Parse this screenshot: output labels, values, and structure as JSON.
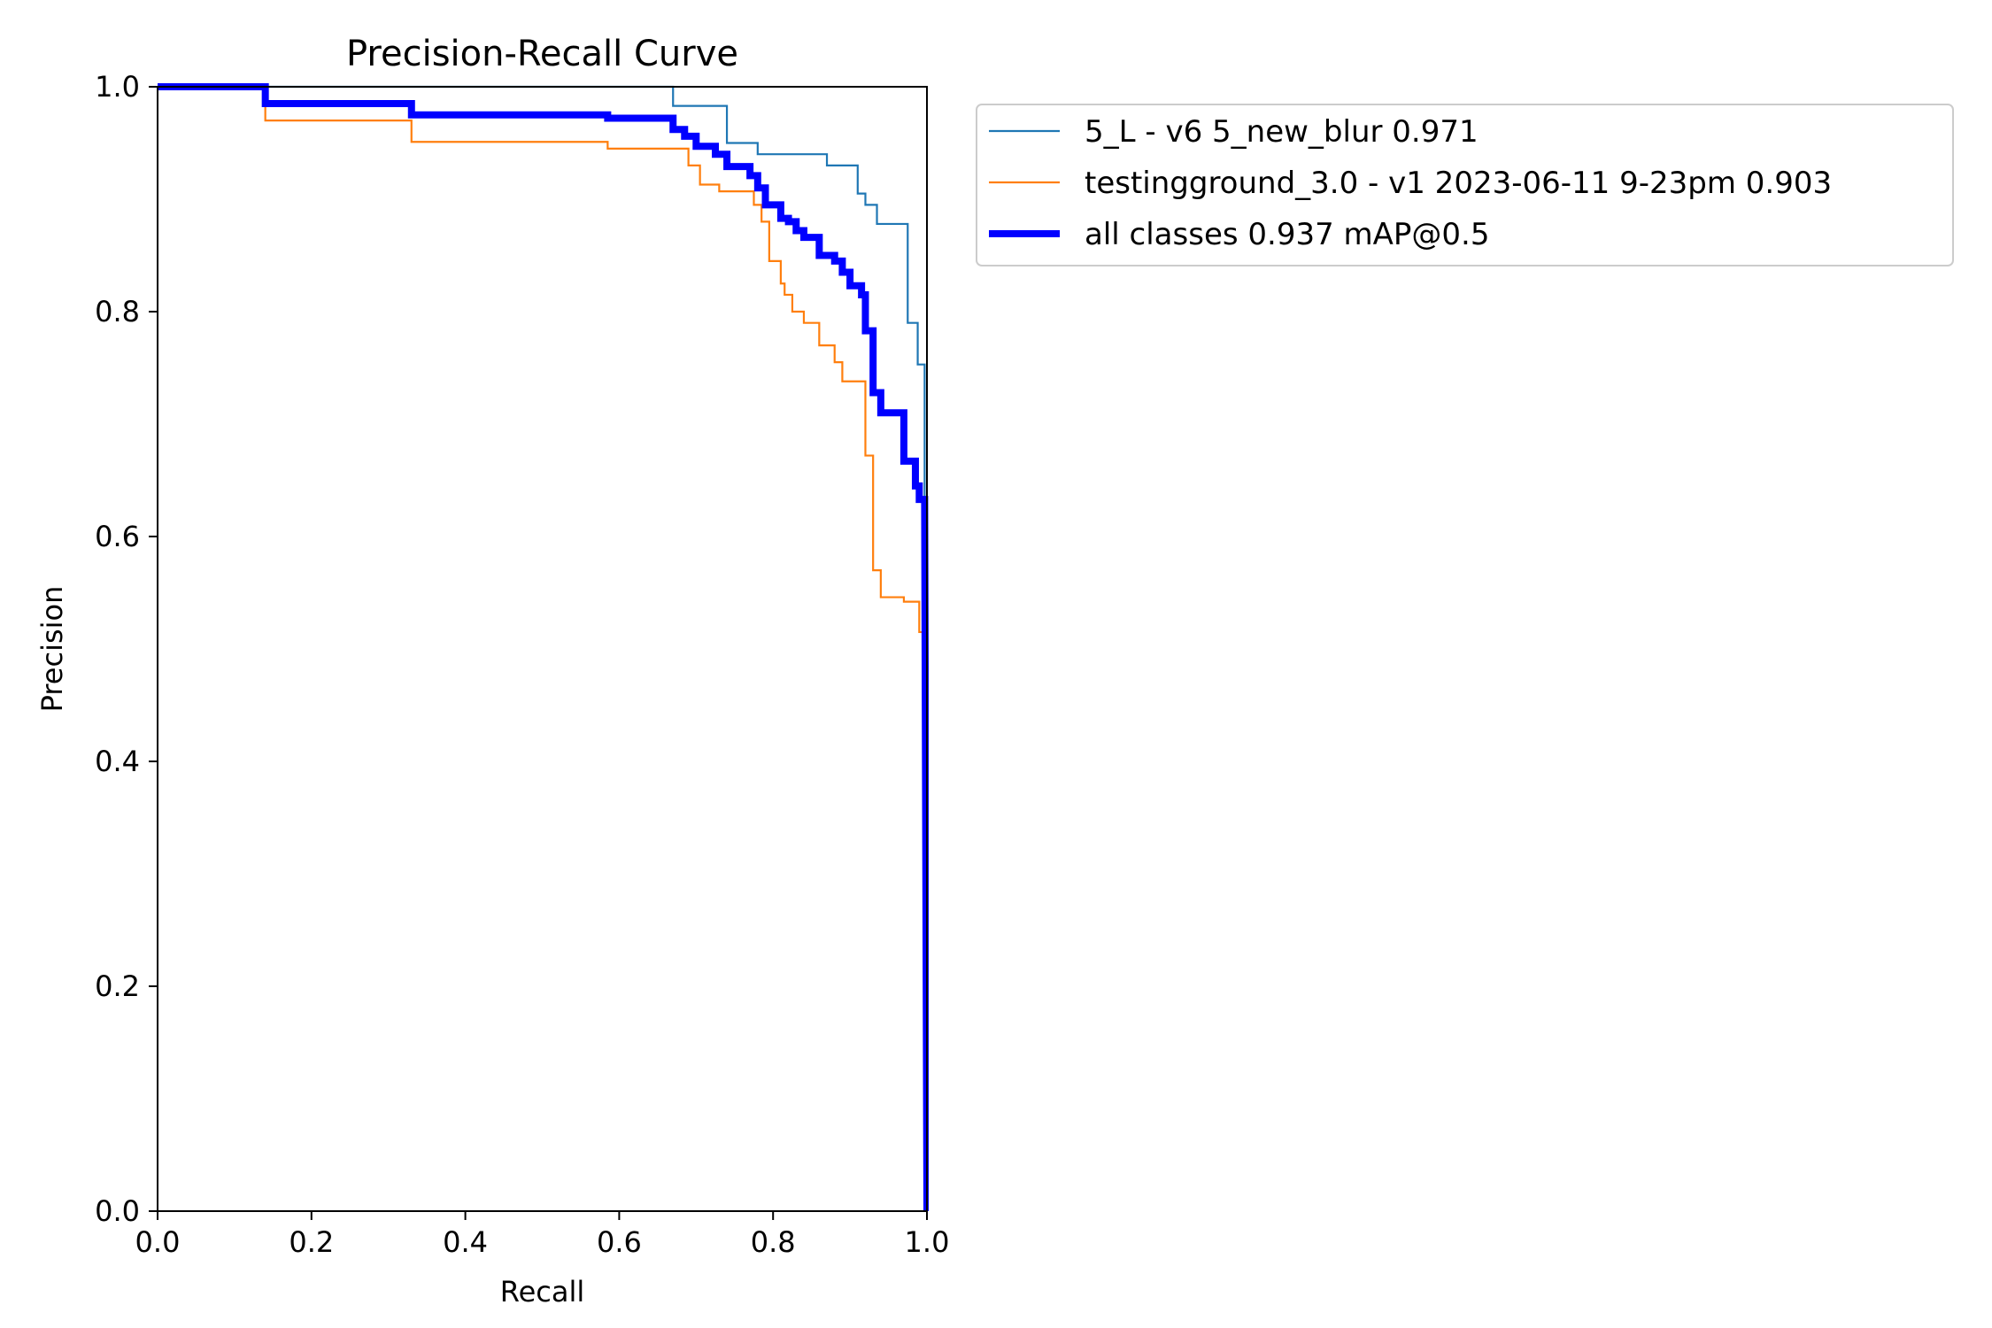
{
  "chart_data": {
    "type": "line",
    "title": "Precision-Recall Curve",
    "xlabel": "Recall",
    "ylabel": "Precision",
    "xlim": [
      0,
      1
    ],
    "ylim": [
      0,
      1
    ],
    "xticks": [
      "0.0",
      "0.2",
      "0.4",
      "0.6",
      "0.8",
      "1.0"
    ],
    "yticks": [
      "0.0",
      "0.2",
      "0.4",
      "0.6",
      "0.8",
      "1.0"
    ],
    "grid": false,
    "legend_position": "outside top-right",
    "series": [
      {
        "name": "5_L - v6 5_new_blur 0.971",
        "color": "#1f77b4",
        "linewidth": "thin",
        "points": [
          [
            0.0,
            1.0
          ],
          [
            0.67,
            1.0
          ],
          [
            0.67,
            0.983
          ],
          [
            0.74,
            0.983
          ],
          [
            0.74,
            0.95
          ],
          [
            0.78,
            0.95
          ],
          [
            0.78,
            0.94
          ],
          [
            0.87,
            0.94
          ],
          [
            0.87,
            0.93
          ],
          [
            0.91,
            0.93
          ],
          [
            0.91,
            0.905
          ],
          [
            0.92,
            0.905
          ],
          [
            0.92,
            0.895
          ],
          [
            0.935,
            0.895
          ],
          [
            0.935,
            0.878
          ],
          [
            0.975,
            0.878
          ],
          [
            0.975,
            0.79
          ],
          [
            0.988,
            0.79
          ],
          [
            0.988,
            0.753
          ],
          [
            0.997,
            0.753
          ],
          [
            0.997,
            0.62
          ],
          [
            1.0,
            0.0
          ]
        ]
      },
      {
        "name": "testingground_3.0 - v1 2023-06-11 9-23pm 0.903",
        "color": "#ff7f0e",
        "linewidth": "thin",
        "points": [
          [
            0.0,
            1.0
          ],
          [
            0.14,
            1.0
          ],
          [
            0.14,
            0.97
          ],
          [
            0.33,
            0.97
          ],
          [
            0.33,
            0.951
          ],
          [
            0.585,
            0.951
          ],
          [
            0.585,
            0.945
          ],
          [
            0.69,
            0.945
          ],
          [
            0.69,
            0.93
          ],
          [
            0.705,
            0.93
          ],
          [
            0.705,
            0.913
          ],
          [
            0.73,
            0.913
          ],
          [
            0.73,
            0.907
          ],
          [
            0.775,
            0.907
          ],
          [
            0.775,
            0.895
          ],
          [
            0.785,
            0.895
          ],
          [
            0.785,
            0.88
          ],
          [
            0.795,
            0.88
          ],
          [
            0.795,
            0.845
          ],
          [
            0.81,
            0.845
          ],
          [
            0.81,
            0.825
          ],
          [
            0.815,
            0.825
          ],
          [
            0.815,
            0.815
          ],
          [
            0.825,
            0.815
          ],
          [
            0.825,
            0.8
          ],
          [
            0.84,
            0.8
          ],
          [
            0.84,
            0.79
          ],
          [
            0.86,
            0.79
          ],
          [
            0.86,
            0.77
          ],
          [
            0.88,
            0.77
          ],
          [
            0.88,
            0.755
          ],
          [
            0.89,
            0.755
          ],
          [
            0.89,
            0.738
          ],
          [
            0.92,
            0.738
          ],
          [
            0.92,
            0.672
          ],
          [
            0.93,
            0.672
          ],
          [
            0.93,
            0.57
          ],
          [
            0.94,
            0.57
          ],
          [
            0.94,
            0.546
          ],
          [
            0.97,
            0.546
          ],
          [
            0.97,
            0.542
          ],
          [
            0.99,
            0.542
          ],
          [
            0.99,
            0.515
          ],
          [
            0.998,
            0.515
          ],
          [
            1.0,
            0.0
          ]
        ]
      },
      {
        "name": "all classes 0.937 mAP@0.5",
        "color": "#0000ff",
        "linewidth": "thick",
        "points": [
          [
            0.0,
            1.0
          ],
          [
            0.14,
            1.0
          ],
          [
            0.14,
            0.985
          ],
          [
            0.33,
            0.985
          ],
          [
            0.33,
            0.975
          ],
          [
            0.585,
            0.975
          ],
          [
            0.585,
            0.972
          ],
          [
            0.67,
            0.972
          ],
          [
            0.67,
            0.962
          ],
          [
            0.685,
            0.962
          ],
          [
            0.685,
            0.956
          ],
          [
            0.7,
            0.956
          ],
          [
            0.7,
            0.947
          ],
          [
            0.725,
            0.947
          ],
          [
            0.725,
            0.94
          ],
          [
            0.74,
            0.94
          ],
          [
            0.74,
            0.929
          ],
          [
            0.77,
            0.929
          ],
          [
            0.77,
            0.921
          ],
          [
            0.78,
            0.921
          ],
          [
            0.78,
            0.91
          ],
          [
            0.79,
            0.91
          ],
          [
            0.79,
            0.895
          ],
          [
            0.81,
            0.895
          ],
          [
            0.81,
            0.883
          ],
          [
            0.82,
            0.883
          ],
          [
            0.82,
            0.88
          ],
          [
            0.83,
            0.88
          ],
          [
            0.83,
            0.872
          ],
          [
            0.84,
            0.872
          ],
          [
            0.84,
            0.866
          ],
          [
            0.86,
            0.866
          ],
          [
            0.86,
            0.85
          ],
          [
            0.88,
            0.85
          ],
          [
            0.88,
            0.845
          ],
          [
            0.89,
            0.845
          ],
          [
            0.89,
            0.835
          ],
          [
            0.9,
            0.835
          ],
          [
            0.9,
            0.823
          ],
          [
            0.915,
            0.823
          ],
          [
            0.915,
            0.815
          ],
          [
            0.92,
            0.815
          ],
          [
            0.92,
            0.783
          ],
          [
            0.93,
            0.783
          ],
          [
            0.93,
            0.728
          ],
          [
            0.94,
            0.728
          ],
          [
            0.94,
            0.71
          ],
          [
            0.97,
            0.71
          ],
          [
            0.97,
            0.667
          ],
          [
            0.985,
            0.667
          ],
          [
            0.985,
            0.645
          ],
          [
            0.99,
            0.645
          ],
          [
            0.99,
            0.633
          ],
          [
            0.997,
            0.633
          ],
          [
            1.0,
            0.0
          ]
        ]
      }
    ]
  }
}
